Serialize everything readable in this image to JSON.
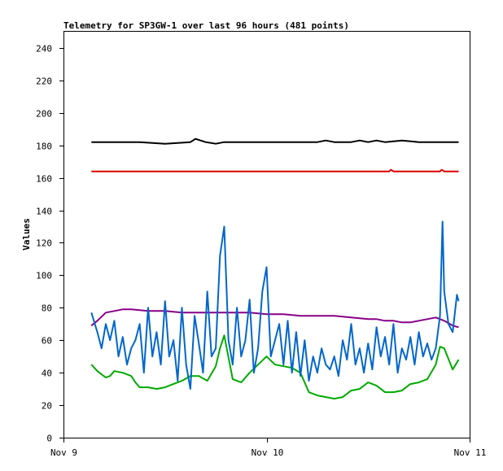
{
  "chart_data": {
    "type": "line",
    "title": "Telemetry for SP3GW-1 over last 96 hours (481 points)",
    "xlabel": "",
    "ylabel": "Values",
    "ylim": [
      0,
      250
    ],
    "xlim": [
      0,
      48
    ],
    "x_unit": "hours since Nov 9 00:00",
    "x_ticks": [
      {
        "x": 0,
        "label": "Nov 9"
      },
      {
        "x": 24,
        "label": "Nov 10"
      },
      {
        "x": 48,
        "label": "Nov 11"
      }
    ],
    "y_ticks": [
      0,
      20,
      40,
      60,
      80,
      100,
      120,
      140,
      160,
      180,
      200,
      220,
      240
    ],
    "grid": false,
    "legend": "none",
    "series": [
      {
        "color": "#000000",
        "x": [
          3.3,
          6,
          9,
          12,
          15,
          15.6,
          16.2,
          16.8,
          18,
          19,
          22,
          24,
          27,
          30,
          31,
          32,
          34,
          35,
          36,
          37,
          38,
          40,
          42,
          44,
          46,
          46.7
        ],
        "values": [
          182,
          182,
          182,
          181,
          182,
          184,
          183,
          182,
          181,
          182,
          182,
          182,
          182,
          182,
          183,
          182,
          182,
          183,
          182,
          183,
          182,
          183,
          182,
          182,
          182,
          182
        ]
      },
      {
        "color": "#dd0000",
        "x": [
          3.3,
          10,
          20,
          30,
          38.5,
          38.7,
          39,
          41,
          44.5,
          44.7,
          45,
          46.7
        ],
        "values": [
          164,
          164,
          164,
          164,
          164,
          165,
          164,
          164,
          164,
          165,
          164,
          164
        ]
      },
      {
        "color": "#880088",
        "x": [
          3.3,
          4,
          5,
          6,
          7,
          8,
          10,
          12,
          14,
          16,
          18,
          20,
          22,
          24,
          26,
          28,
          30,
          32,
          34,
          36,
          37,
          38,
          39,
          40,
          41,
          42,
          43,
          44,
          45,
          46,
          46.7
        ],
        "values": [
          69,
          72,
          77,
          78,
          79,
          79,
          78,
          78,
          77,
          77,
          77,
          77,
          77,
          76,
          76,
          75,
          75,
          75,
          74,
          73,
          73,
          72,
          72,
          71,
          71,
          72,
          73,
          74,
          72,
          69,
          68
        ]
      },
      {
        "color": "#00aa00",
        "x": [
          3.3,
          4,
          5,
          5.5,
          6,
          7,
          8,
          8.5,
          9,
          10,
          11,
          12,
          13,
          14,
          15,
          16,
          17,
          18,
          18.5,
          19,
          20,
          21,
          22,
          23,
          24,
          25,
          26,
          27,
          28,
          29,
          30,
          31,
          32,
          33,
          34,
          35,
          36,
          37,
          38,
          39,
          40,
          41,
          42,
          43,
          44,
          44.5,
          45,
          46,
          46.7
        ],
        "values": [
          45,
          41,
          37,
          38,
          41,
          40,
          38,
          34,
          31,
          31,
          30,
          31,
          33,
          35,
          38,
          38,
          35,
          44,
          55,
          63,
          36,
          34,
          40,
          45,
          50,
          45,
          44,
          43,
          40,
          28,
          26,
          25,
          24,
          25,
          29,
          30,
          34,
          32,
          28,
          28,
          29,
          33,
          34,
          36,
          45,
          56,
          55,
          42,
          48
        ]
      },
      {
        "color": "#0066cc",
        "x": [
          3.3,
          4,
          4.5,
          5,
          5.5,
          6,
          6.5,
          7,
          7.5,
          8,
          8.5,
          9,
          9.5,
          10,
          10.5,
          11,
          11.5,
          12,
          12.5,
          13,
          13.5,
          14,
          14.5,
          15,
          15.5,
          16,
          16.5,
          17,
          17.5,
          18,
          18.5,
          19,
          19.5,
          20,
          20.5,
          21,
          21.5,
          22,
          22.5,
          23,
          23.5,
          24,
          24.5,
          25,
          25.5,
          26,
          26.5,
          27,
          27.5,
          28,
          28.5,
          29,
          29.5,
          30,
          30.5,
          31,
          31.5,
          32,
          32.5,
          33,
          33.5,
          34,
          34.5,
          35,
          35.5,
          36,
          36.5,
          37,
          37.5,
          38,
          38.5,
          39,
          39.5,
          40,
          40.5,
          41,
          41.5,
          42,
          42.5,
          43,
          43.5,
          44,
          44.5,
          44.8,
          45,
          45.5,
          46,
          46.5,
          46.7
        ],
        "values": [
          77,
          65,
          55,
          70,
          60,
          72,
          50,
          62,
          45,
          55,
          60,
          70,
          40,
          80,
          50,
          65,
          45,
          84,
          50,
          60,
          35,
          80,
          45,
          30,
          75,
          58,
          40,
          90,
          50,
          55,
          112,
          130,
          60,
          45,
          80,
          50,
          60,
          85,
          40,
          55,
          90,
          105,
          50,
          60,
          70,
          45,
          72,
          40,
          65,
          38,
          60,
          35,
          50,
          40,
          55,
          45,
          42,
          50,
          38,
          60,
          48,
          70,
          45,
          55,
          40,
          58,
          42,
          68,
          50,
          62,
          45,
          70,
          40,
          55,
          48,
          62,
          45,
          65,
          50,
          58,
          48,
          55,
          75,
          133,
          90,
          70,
          65,
          88,
          84
        ]
      }
    ]
  }
}
